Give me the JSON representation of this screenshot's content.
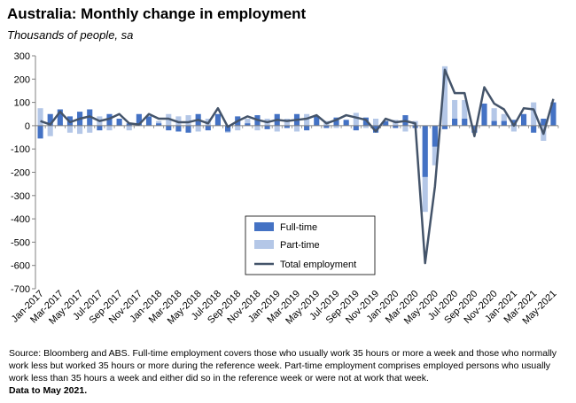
{
  "title": "Australia: Monthly change in employment",
  "subtitle": "Thousands of people, sa",
  "source": "Source: Bloomberg and ABS.  Full-time employment covers those who usually work 35 hours or more a week and those who normally work less but worked 35 hours or  more during the reference week.  Part-time employment comprises employed persons who usually work less than 35 hours a week and either did so in the reference week or were not at work that week.",
  "data_to": "Data to  May 2021.",
  "colors": {
    "full_time": "#4472C4",
    "part_time": "#B4C7E7",
    "total": "#44546A"
  },
  "chart_data": {
    "type": "bar",
    "categories": [
      "Jan-2017",
      "Feb-2017",
      "Mar-2017",
      "Apr-2017",
      "May-2017",
      "Jun-2017",
      "Jul-2017",
      "Aug-2017",
      "Sep-2017",
      "Oct-2017",
      "Nov-2017",
      "Dec-2017",
      "Jan-2018",
      "Feb-2018",
      "Mar-2018",
      "Apr-2018",
      "May-2018",
      "Jun-2018",
      "Jul-2018",
      "Aug-2018",
      "Sep-2018",
      "Oct-2018",
      "Nov-2018",
      "Dec-2018",
      "Jan-2019",
      "Feb-2019",
      "Mar-2019",
      "Apr-2019",
      "May-2019",
      "Jun-2019",
      "Jul-2019",
      "Aug-2019",
      "Sep-2019",
      "Oct-2019",
      "Nov-2019",
      "Dec-2019",
      "Jan-2020",
      "Feb-2020",
      "Mar-2020",
      "Apr-2020",
      "May-2020",
      "Jun-2020",
      "Jul-2020",
      "Aug-2020",
      "Sep-2020",
      "Oct-2020",
      "Nov-2020",
      "Dec-2020",
      "Jan-2021",
      "Feb-2021",
      "Mar-2021",
      "Apr-2021",
      "May-2021"
    ],
    "tick_labels": [
      "Jan-2017",
      "Mar-2017",
      "May-2017",
      "Jul-2017",
      "Sep-2017",
      "Nov-2017",
      "Jan-2018",
      "Mar-2018",
      "May-2018",
      "Jul-2018",
      "Sep-2018",
      "Nov-2018",
      "Jan-2019",
      "Mar-2019",
      "May-2019",
      "Jul-2019",
      "Sep-2019",
      "Nov-2019",
      "Jan-2020",
      "Mar-2020",
      "May-2020",
      "Jul-2020",
      "Sep-2020",
      "Nov-2020",
      "Jan-2021",
      "Mar-2021",
      "May-2021"
    ],
    "series": [
      {
        "name": "Full-time",
        "kind": "bar",
        "values": [
          -55,
          50,
          70,
          40,
          60,
          70,
          -20,
          50,
          30,
          10,
          50,
          40,
          10,
          -20,
          -25,
          -30,
          50,
          -20,
          50,
          -25,
          40,
          10,
          45,
          -15,
          50,
          -10,
          50,
          -20,
          40,
          -10,
          35,
          25,
          -20,
          35,
          -30,
          20,
          -10,
          45,
          -10,
          -220,
          -90,
          -15,
          30,
          30,
          -30,
          95,
          20,
          20,
          25,
          50,
          -30,
          30,
          100
        ]
      },
      {
        "name": "Part-time",
        "kind": "bar",
        "values": [
          75,
          -45,
          10,
          -30,
          -35,
          -30,
          40,
          -20,
          15,
          -20,
          10,
          15,
          20,
          50,
          40,
          45,
          -25,
          30,
          25,
          -30,
          -20,
          30,
          -20,
          30,
          -25,
          30,
          -25,
          50,
          5,
          20,
          -10,
          20,
          55,
          -10,
          30,
          10,
          25,
          -25,
          20,
          -370,
          -170,
          255,
          110,
          110,
          -15,
          70,
          75,
          50,
          -25,
          25,
          100,
          -65,
          0
        ]
      },
      {
        "name": "Total employment",
        "kind": "line",
        "values": [
          20,
          5,
          60,
          15,
          30,
          40,
          20,
          30,
          50,
          10,
          5,
          50,
          30,
          30,
          15,
          15,
          25,
          10,
          75,
          -5,
          20,
          40,
          25,
          15,
          25,
          20,
          25,
          30,
          45,
          10,
          25,
          45,
          35,
          25,
          -25,
          30,
          15,
          20,
          10,
          -590,
          -260,
          240,
          140,
          140,
          -45,
          165,
          95,
          70,
          0,
          75,
          70,
          -35,
          115
        ]
      }
    ],
    "ylim": [
      -700,
      300
    ],
    "yticks": [
      -700,
      -600,
      -500,
      -400,
      -300,
      -200,
      -100,
      0,
      100,
      200,
      300
    ],
    "legend": {
      "placement": "bottom-center"
    },
    "grid": false
  }
}
